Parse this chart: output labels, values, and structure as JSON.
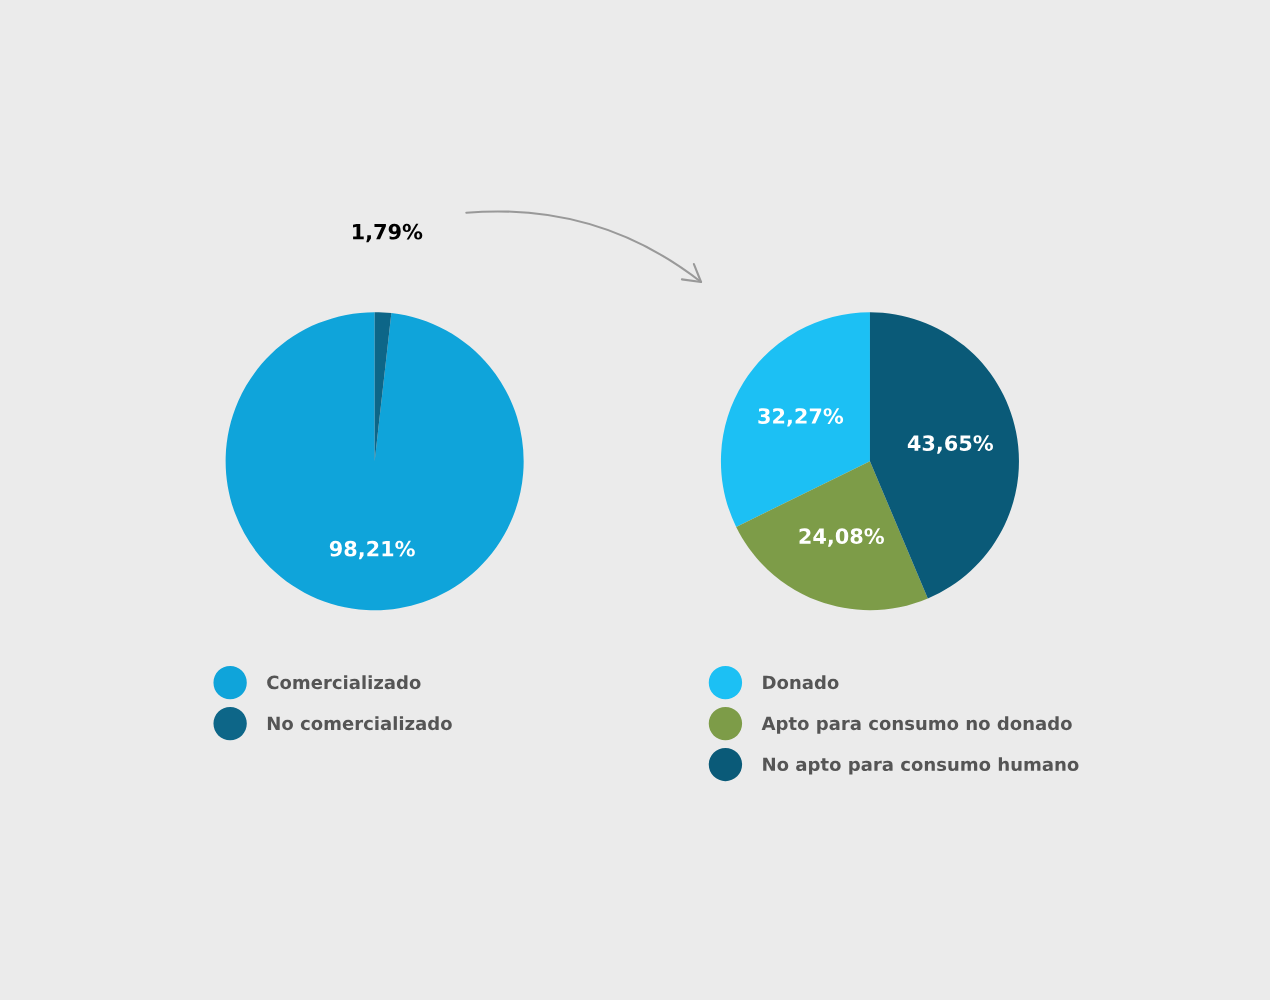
{
  "chart_data": [
    {
      "type": "pie",
      "categories": [
        "Comercializado",
        "No comercializado"
      ],
      "values": [
        98.21,
        1.79
      ],
      "colors": [
        "#0fa4da",
        "#0d6688"
      ],
      "value_labels": [
        "98,21%",
        "1,79%"
      ],
      "legend": "bottom"
    },
    {
      "type": "pie",
      "categories": [
        "Donado",
        "Apto para consumo no donado",
        "No apto para consumo humano"
      ],
      "values": [
        32.27,
        24.08,
        43.65
      ],
      "colors": [
        "#1cc0f4",
        "#7d9c48",
        "#0a5a78"
      ],
      "value_labels": [
        "32,27%",
        "24,08%",
        "43,65%"
      ],
      "legend": "bottom"
    }
  ]
}
